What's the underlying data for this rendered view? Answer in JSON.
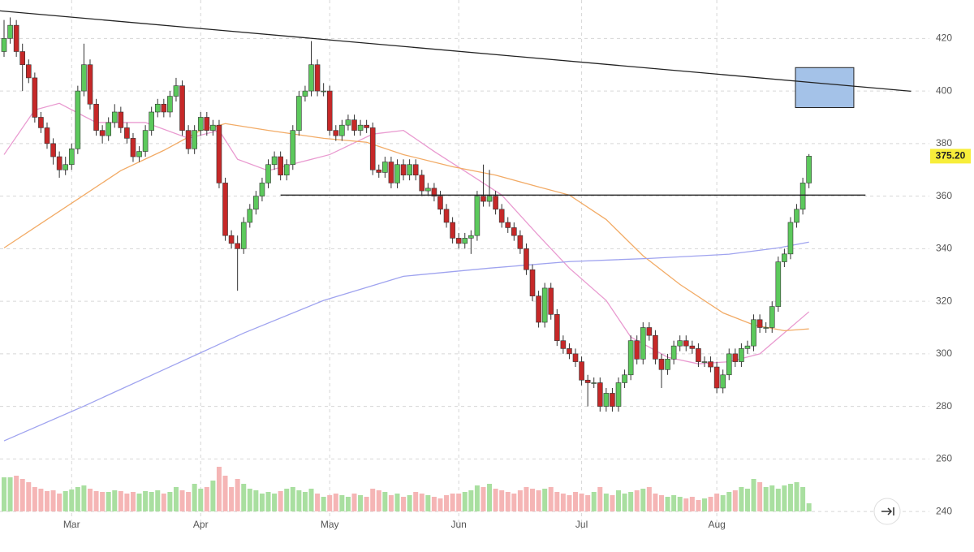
{
  "chart_data": {
    "type": "candlestick",
    "ylim": [
      228,
      434
    ],
    "yticks": [
      240,
      260,
      280,
      300,
      320,
      340,
      360,
      380,
      400,
      420
    ],
    "grid": true,
    "xticks": [
      {
        "value": 11,
        "label": "Mar"
      },
      {
        "value": 32,
        "label": "Apr"
      },
      {
        "value": 53,
        "label": "May"
      },
      {
        "value": 74,
        "label": "Jun"
      },
      {
        "value": 94,
        "label": "Jul"
      },
      {
        "value": 116,
        "label": "Aug"
      }
    ],
    "up_color": "#5cc95c",
    "down_color": "#c62828",
    "volume_up_color": "#a9dfa0",
    "volume_down_color": "#f5b5b5",
    "ohlc": [
      [
        415,
        427,
        413,
        420
      ],
      [
        420,
        428,
        418,
        425
      ],
      [
        425,
        427,
        413,
        415
      ],
      [
        415,
        418,
        400,
        410
      ],
      [
        410,
        412,
        403,
        405
      ],
      [
        405,
        407,
        388,
        390
      ],
      [
        390,
        392,
        384,
        386
      ],
      [
        386,
        388,
        378,
        380
      ],
      [
        380,
        382,
        372,
        375
      ],
      [
        375,
        377,
        367,
        370
      ],
      [
        370,
        375,
        368,
        372
      ],
      [
        372,
        380,
        370,
        378
      ],
      [
        378,
        402,
        376,
        400
      ],
      [
        400,
        418,
        398,
        410
      ],
      [
        410,
        412,
        393,
        395
      ],
      [
        395,
        397,
        383,
        385
      ],
      [
        385,
        387,
        380,
        383
      ],
      [
        383,
        390,
        381,
        388
      ],
      [
        388,
        395,
        386,
        392
      ],
      [
        392,
        394,
        384,
        386
      ],
      [
        386,
        388,
        380,
        382
      ],
      [
        382,
        384,
        373,
        375
      ],
      [
        375,
        379,
        373,
        377
      ],
      [
        377,
        387,
        375,
        385
      ],
      [
        385,
        394,
        383,
        392
      ],
      [
        392,
        397,
        390,
        395
      ],
      [
        395,
        397,
        390,
        392
      ],
      [
        392,
        400,
        390,
        398
      ],
      [
        398,
        405,
        396,
        402
      ],
      [
        402,
        404,
        383,
        385
      ],
      [
        385,
        387,
        376,
        378
      ],
      [
        378,
        387,
        376,
        385
      ],
      [
        385,
        392,
        383,
        390
      ],
      [
        390,
        392,
        383,
        385
      ],
      [
        385,
        389,
        383,
        387
      ],
      [
        387,
        389,
        363,
        365
      ],
      [
        365,
        367,
        343,
        345
      ],
      [
        345,
        347,
        340,
        342
      ],
      [
        342,
        345,
        324,
        340
      ],
      [
        340,
        352,
        338,
        350
      ],
      [
        350,
        357,
        348,
        355
      ],
      [
        355,
        362,
        353,
        360
      ],
      [
        360,
        367,
        358,
        365
      ],
      [
        365,
        374,
        363,
        372
      ],
      [
        372,
        377,
        370,
        375
      ],
      [
        375,
        377,
        366,
        368
      ],
      [
        368,
        374,
        366,
        372
      ],
      [
        372,
        387,
        370,
        385
      ],
      [
        385,
        400,
        383,
        398
      ],
      [
        398,
        402,
        396,
        400
      ],
      [
        400,
        419,
        398,
        410
      ],
      [
        410,
        412,
        398,
        400
      ],
      [
        400,
        403,
        398,
        400
      ],
      [
        400,
        402,
        383,
        385
      ],
      [
        385,
        387,
        381,
        383
      ],
      [
        383,
        389,
        381,
        387
      ],
      [
        387,
        391,
        385,
        389
      ],
      [
        389,
        391,
        383,
        385
      ],
      [
        385,
        389,
        383,
        387
      ],
      [
        387,
        389,
        384,
        386
      ],
      [
        386,
        388,
        368,
        370
      ],
      [
        370,
        372,
        367,
        369
      ],
      [
        369,
        375,
        367,
        373
      ],
      [
        373,
        375,
        363,
        365
      ],
      [
        365,
        374,
        363,
        372
      ],
      [
        372,
        374,
        366,
        368
      ],
      [
        368,
        374,
        366,
        372
      ],
      [
        372,
        374,
        366,
        368
      ],
      [
        368,
        370,
        360,
        362
      ],
      [
        362,
        365,
        360,
        363
      ],
      [
        363,
        365,
        358,
        360
      ],
      [
        360,
        362,
        353,
        355
      ],
      [
        355,
        357,
        348,
        350
      ],
      [
        350,
        352,
        342,
        344
      ],
      [
        344,
        346,
        340,
        342
      ],
      [
        342,
        346,
        340,
        344
      ],
      [
        344,
        347,
        338,
        345
      ],
      [
        345,
        362,
        343,
        360
      ],
      [
        360,
        372,
        356,
        358
      ],
      [
        358,
        370,
        356,
        360
      ],
      [
        360,
        362,
        353,
        355
      ],
      [
        355,
        357,
        348,
        350
      ],
      [
        350,
        352,
        346,
        348
      ],
      [
        348,
        350,
        343,
        345
      ],
      [
        345,
        347,
        338,
        340
      ],
      [
        340,
        342,
        330,
        332
      ],
      [
        332,
        334,
        320,
        322
      ],
      [
        322,
        324,
        310,
        312
      ],
      [
        312,
        327,
        310,
        325
      ],
      [
        325,
        327,
        313,
        315
      ],
      [
        315,
        317,
        303,
        305
      ],
      [
        305,
        307,
        300,
        302
      ],
      [
        302,
        304,
        298,
        300
      ],
      [
        300,
        302,
        295,
        297
      ],
      [
        297,
        299,
        288,
        290
      ],
      [
        290,
        292,
        280,
        289
      ],
      [
        289,
        291,
        287,
        289
      ],
      [
        289,
        291,
        278,
        280
      ],
      [
        280,
        287,
        278,
        285
      ],
      [
        285,
        287,
        278,
        280
      ],
      [
        280,
        291,
        278,
        289
      ],
      [
        289,
        294,
        287,
        292
      ],
      [
        292,
        307,
        290,
        305
      ],
      [
        305,
        307,
        296,
        298
      ],
      [
        298,
        312,
        296,
        310
      ],
      [
        310,
        312,
        305,
        307
      ],
      [
        307,
        309,
        296,
        298
      ],
      [
        298,
        300,
        287,
        294
      ],
      [
        294,
        300,
        292,
        298
      ],
      [
        298,
        305,
        296,
        303
      ],
      [
        303,
        307,
        301,
        305
      ],
      [
        305,
        307,
        301,
        303
      ],
      [
        303,
        305,
        300,
        302
      ],
      [
        302,
        304,
        295,
        297
      ],
      [
        297,
        299,
        295,
        297
      ],
      [
        297,
        299,
        293,
        295
      ],
      [
        295,
        297,
        285,
        287
      ],
      [
        287,
        294,
        285,
        292
      ],
      [
        292,
        302,
        290,
        300
      ],
      [
        300,
        302,
        295,
        297
      ],
      [
        297,
        304,
        295,
        302
      ],
      [
        302,
        305,
        300,
        303
      ],
      [
        303,
        315,
        301,
        313
      ],
      [
        313,
        315,
        308,
        310
      ],
      [
        310,
        312,
        308,
        310
      ],
      [
        310,
        320,
        308,
        318
      ],
      [
        318,
        337,
        316,
        335
      ],
      [
        335,
        340,
        333,
        338
      ],
      [
        338,
        352,
        336,
        350
      ],
      [
        350,
        357,
        348,
        355
      ],
      [
        355,
        367,
        353,
        365
      ],
      [
        365,
        376,
        363,
        375.2
      ]
    ],
    "volume": [
      42,
      42,
      44,
      40,
      36,
      30,
      28,
      25,
      26,
      22,
      25,
      27,
      30,
      32,
      28,
      25,
      24,
      24,
      26,
      25,
      22,
      24,
      22,
      25,
      24,
      26,
      22,
      24,
      30,
      26,
      24,
      34,
      28,
      30,
      38,
      55,
      44,
      30,
      40,
      34,
      28,
      26,
      22,
      24,
      22,
      25,
      28,
      30,
      26,
      24,
      28,
      22,
      18,
      20,
      22,
      20,
      18,
      22,
      20,
      18,
      28,
      26,
      24,
      20,
      22,
      18,
      20,
      24,
      22,
      20,
      18,
      16,
      20,
      22,
      22,
      24,
      26,
      32,
      30,
      34,
      28,
      26,
      24,
      22,
      26,
      30,
      28,
      26,
      28,
      30,
      24,
      22,
      20,
      24,
      22,
      20,
      24,
      30,
      22,
      20,
      26,
      22,
      24,
      26,
      28,
      30,
      22,
      20,
      18,
      20,
      18,
      16,
      18,
      14,
      16,
      18,
      22,
      20,
      24,
      26,
      30,
      28,
      40,
      36,
      30,
      32,
      28,
      32,
      34,
      36,
      30,
      10
    ],
    "series": [
      {
        "color": "#e99ad0",
        "x": [
          0,
          5,
          9,
          15,
          23,
          30,
          35,
          38,
          43,
          48,
          53,
          60,
          65,
          70,
          76,
          81,
          87,
          92,
          98,
          102,
          108,
          113,
          118,
          123,
          127,
          131
        ],
        "values": [
          375.8,
          392.8,
          395.3,
          388,
          388,
          382,
          385,
          374,
          369.7,
          372.8,
          375.8,
          383.6,
          385,
          377,
          368,
          360.4,
          345,
          332.6,
          320.3,
          306.4,
          298.7,
          296.2,
          297,
          300,
          308,
          316
        ]
      },
      {
        "color": "#f2ab66",
        "x": [
          0,
          6,
          13,
          19,
          26,
          32,
          36,
          43,
          52,
          59,
          65,
          73,
          80,
          87,
          92,
          98,
          104,
          110,
          117,
          122,
          127,
          131
        ],
        "values": [
          340.3,
          349.6,
          360.4,
          369.7,
          377.4,
          385,
          387.6,
          385,
          382,
          380.5,
          375.8,
          371.2,
          368,
          363.5,
          360.4,
          351.1,
          337.3,
          326.4,
          315.6,
          311,
          308.8,
          309.5
        ]
      },
      {
        "color": "#9fa3ef",
        "x": [
          0,
          13,
          26,
          39,
          52,
          65,
          79,
          92,
          105,
          118,
          126,
          131
        ],
        "values": [
          266.9,
          280.1,
          294,
          307.9,
          320.3,
          329.5,
          332.6,
          335.1,
          336.3,
          337.9,
          340.3,
          342.5
        ]
      }
    ],
    "trendlines": [
      {
        "x": [
          -0.7,
          147.6
        ],
        "values": [
          430.5,
          399.9
        ]
      },
      {
        "x": [
          45,
          140.2
        ],
        "values": [
          360.4,
          360.4
        ]
      }
    ],
    "box": {
      "x": [
        128.8,
        138.3
      ],
      "values": [
        393.7,
        408.9
      ],
      "color": "#a4c2e8"
    },
    "last_price": {
      "value": 375.2,
      "label": "375.20"
    }
  }
}
